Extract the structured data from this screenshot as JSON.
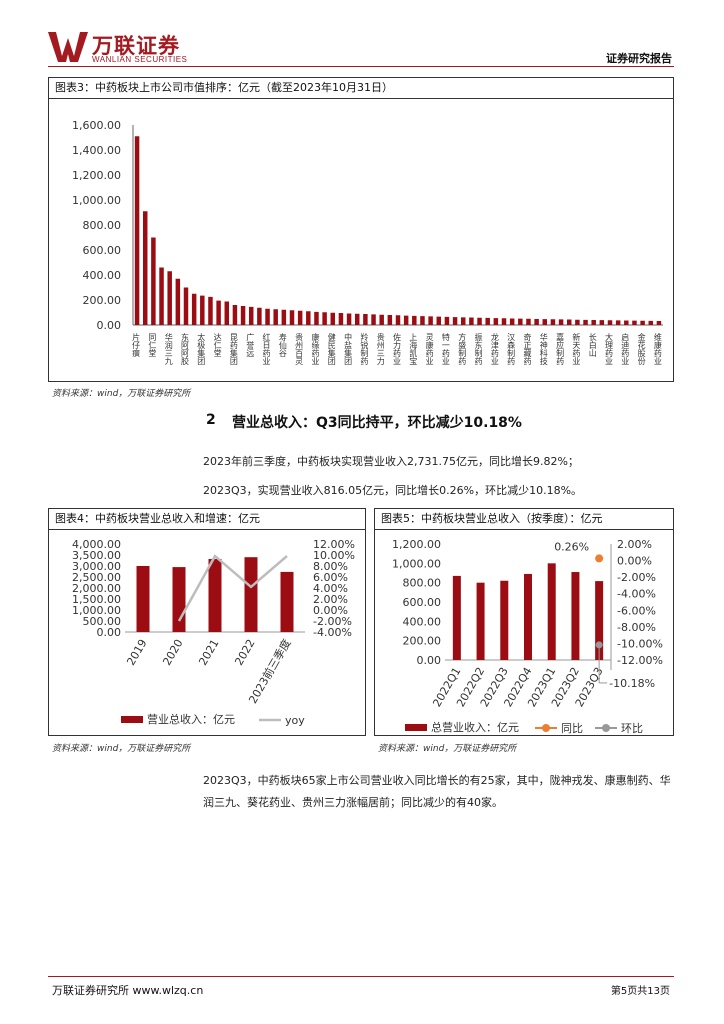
{
  "header": {
    "logo_cn": "万联证券",
    "logo_en": "WANLIAN SECURITIES",
    "report_type": "证券研究报告"
  },
  "figure3": {
    "title": "图表3：中药板块上市公司市值排序：亿元（截至2023年10月31日）",
    "source": "资料来源：wind，万联证券研究所"
  },
  "section2": {
    "number": "2",
    "title": "营业总收入：Q3同比持平，环比减少10.18%"
  },
  "para1": "2023年前三季度，中药板块实现营业收入2,731.75亿元，同比增长9.82%；",
  "para2": "2023Q3，实现营业收入816.05亿元，同比增长0.26%，环比减少10.18%。",
  "figure4": {
    "title": "图表4：中药板块营业总收入和增速：亿元",
    "source": "资料来源：wind，万联证券研究所"
  },
  "figure5": {
    "title": "图表5：中药板块营业总收入（按季度）：亿元",
    "source": "资料来源：wind，万联证券研究所"
  },
  "para3": "2023Q3，中药板块65家上市公司营业收入同比增长的有25家，其中，陇神戎发、康惠制药、华润三九、葵花药业、贵州三力涨幅居前；同比减少的有40家。",
  "footer": {
    "left": "万联证券研究所 www.wlzq.cn",
    "right": "第5页共13页"
  },
  "colors": {
    "brand": "#a31a20",
    "bar": "#9b0d13",
    "line_gray": "#bdbdbd",
    "orange": "#ed7d31"
  },
  "chart_data": [
    {
      "id": "fig3",
      "type": "bar",
      "title": "",
      "ylim": [
        0,
        1600
      ],
      "yticks": [
        "0.00",
        "200.00",
        "400.00",
        "600.00",
        "800.00",
        "1,000.00",
        "1,200.00",
        "1,400.00",
        "1,600.00"
      ],
      "xlabels": [
        "片仔癀",
        "同仁堂",
        "华润三九",
        "东阿阿胶",
        "太极集团",
        "达仁堂",
        "昆药集团",
        "广誉远",
        "红日药业",
        "寿仙谷",
        "贵州百灵",
        "康缘药业",
        "健民集团",
        "中盐集团",
        "羚锐制药",
        "贵州三力",
        "佐力药业",
        "上海凯宝",
        "灵康药业",
        "特一药业",
        "方盛制药",
        "振东制药",
        "龙津药业",
        "汉森制药",
        "奇正藏药",
        "华神科技",
        "嘉应制药",
        "新天药业",
        "长白山",
        "大理药业",
        "启迪药业",
        "金花股份",
        "维康药业"
      ],
      "label_every": 2,
      "values": [
        1510,
        910,
        700,
        460,
        430,
        370,
        300,
        250,
        235,
        225,
        195,
        188,
        160,
        152,
        145,
        138,
        130,
        126,
        122,
        118,
        114,
        110,
        105,
        102,
        98,
        96,
        92,
        90,
        88,
        85,
        82,
        80,
        78,
        75,
        73,
        71,
        69,
        67,
        65,
        63,
        61,
        60,
        58,
        57,
        55,
        54,
        52,
        51,
        50,
        48,
        47,
        46,
        45,
        44,
        42,
        41,
        40,
        39,
        38,
        37,
        36,
        35,
        34,
        33,
        32
      ]
    },
    {
      "id": "fig4",
      "type": "bar+line",
      "categories": [
        "2019",
        "2020",
        "2021",
        "2022",
        "2023前三季度"
      ],
      "bar_series": {
        "name": "营业总收入：亿元",
        "values": [
          3000,
          2950,
          3320,
          3400,
          2731.75
        ]
      },
      "line_series": {
        "name": "yoy",
        "values": [
          null,
          -2.0,
          9.8,
          4.2,
          9.82
        ]
      },
      "ylim_left": [
        0,
        4000
      ],
      "yticks_left": [
        "0.00",
        "500.00",
        "1,000.00",
        "1,500.00",
        "2,000.00",
        "2,500.00",
        "3,000.00",
        "3,500.00",
        "4,000.00"
      ],
      "ylim_right": [
        -4,
        12
      ],
      "yticks_right": [
        "-4.00%",
        "-2.00%",
        "0.00%",
        "2.00%",
        "4.00%",
        "6.00%",
        "8.00%",
        "10.00%",
        "12.00%"
      ]
    },
    {
      "id": "fig5",
      "type": "bar+scatter",
      "categories": [
        "2022Q1",
        "2022Q2",
        "2022Q3",
        "2022Q4",
        "2023Q1",
        "2023Q2",
        "2023Q3"
      ],
      "bar_series": {
        "name": "总营业收入：亿元",
        "values": [
          870,
          800,
          820,
          890,
          1000,
          910,
          816.05
        ]
      },
      "yoy_series": {
        "name": "同比",
        "values": [
          null,
          null,
          null,
          null,
          null,
          null,
          0.26
        ],
        "label": "0.26%"
      },
      "qoq_series": {
        "name": "环比",
        "values": [
          null,
          null,
          null,
          null,
          null,
          null,
          -10.18
        ],
        "label": "-10.18%"
      },
      "ylim_left": [
        0,
        1200
      ],
      "yticks_left": [
        "0.00",
        "200.00",
        "400.00",
        "600.00",
        "800.00",
        "1,000.00",
        "1,200.00"
      ],
      "ylim_right": [
        -12,
        2
      ],
      "yticks_right": [
        "-12.00%",
        "-10.00%",
        "-8.00%",
        "-6.00%",
        "-4.00%",
        "-2.00%",
        "0.00%",
        "2.00%"
      ]
    }
  ]
}
